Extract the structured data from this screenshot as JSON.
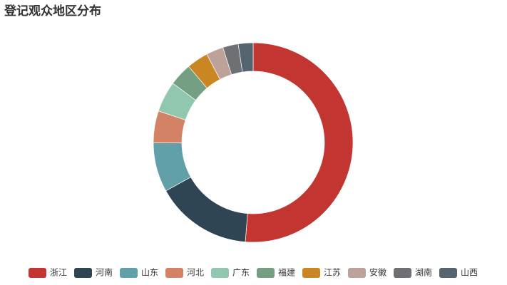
{
  "chart_data": {
    "type": "donut",
    "title": "登记观众地区分布",
    "categories": [
      "浙江",
      "河南",
      "山东",
      "河北",
      "广东",
      "福建",
      "江苏",
      "安徽",
      "湖南",
      "山西"
    ],
    "values": [
      51.3,
      15.7,
      8,
      5.2,
      5,
      3.7,
      3.5,
      2.8,
      2.5,
      2.4
    ],
    "colors": [
      "#c23531",
      "#2f4554",
      "#61a0a8",
      "#d48265",
      "#91c7ae",
      "#749f83",
      "#ca8622",
      "#bda29a",
      "#6e7074",
      "#546570"
    ],
    "legend": "bottom"
  }
}
